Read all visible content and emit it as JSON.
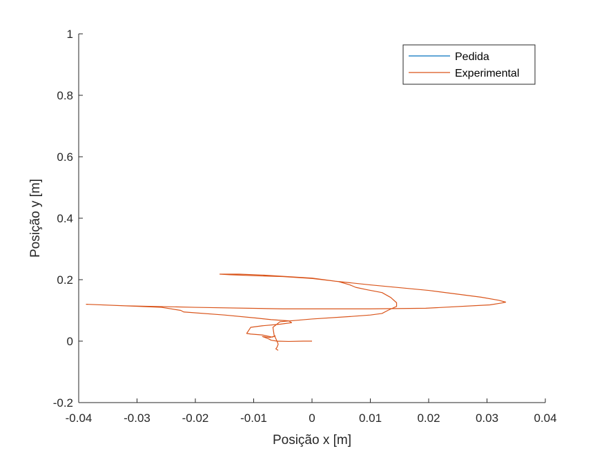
{
  "chart_data": {
    "type": "line",
    "xlabel": "Posição x [m]",
    "ylabel": "Posição y [m]",
    "xlim": [
      -0.04,
      0.04
    ],
    "ylim": [
      -0.2,
      1
    ],
    "x_ticks": [
      -0.04,
      -0.03,
      -0.02,
      -0.01,
      0,
      0.01,
      0.02,
      0.03,
      0.04
    ],
    "x_tick_labels": [
      "-0.04",
      "-0.03",
      "-0.02",
      "-0.01",
      "0",
      "0.01",
      "0.02",
      "0.03",
      "0.04"
    ],
    "y_ticks": [
      -0.2,
      0,
      0.2,
      0.4,
      0.6,
      0.8,
      1
    ],
    "y_tick_labels": [
      "-0.2",
      "0",
      "0.2",
      "0.4",
      "0.6",
      "0.8",
      "1"
    ],
    "grid": false,
    "legend": "top-right",
    "series": [
      {
        "name": "Pedida",
        "color": "#0072BD",
        "x": [],
        "y": []
      },
      {
        "name": "Experimental",
        "color": "#D95319",
        "x": [
          0.0,
          -0.0015,
          -0.004,
          -0.006,
          -0.007,
          -0.0075,
          -0.0085,
          -0.0072,
          -0.0063,
          -0.0068,
          -0.0085,
          -0.0105,
          -0.0112,
          -0.0105,
          -0.0085,
          -0.0055,
          -0.0035,
          -0.004,
          -0.007,
          -0.0095,
          -0.015,
          -0.022,
          -0.0225,
          -0.0258,
          -0.0387,
          -0.032,
          -0.02,
          -0.005,
          0.01,
          0.0195,
          0.0305,
          0.0325,
          0.0332,
          0.032,
          0.029,
          0.02,
          0.01,
          0.004,
          0.0,
          -0.0085,
          -0.0125,
          -0.0158,
          -0.014,
          -0.01,
          -0.005,
          0.0,
          0.0045,
          0.0065,
          0.0075,
          0.0095,
          0.012,
          0.0135,
          0.0145,
          0.0145,
          0.013,
          0.012,
          0.01,
          0.0065,
          0.0,
          -0.0055,
          -0.0067,
          -0.0065,
          -0.006,
          -0.0058,
          -0.006,
          -0.0062,
          -0.0058
        ],
        "y": [
          0.0,
          0.0,
          -0.001,
          0.0,
          0.003,
          0.008,
          0.015,
          0.012,
          0.017,
          0.013,
          0.02,
          0.023,
          0.025,
          0.045,
          0.05,
          0.055,
          0.06,
          0.066,
          0.07,
          0.075,
          0.085,
          0.095,
          0.1,
          0.11,
          0.12,
          0.115,
          0.11,
          0.105,
          0.105,
          0.107,
          0.118,
          0.124,
          0.127,
          0.133,
          0.143,
          0.165,
          0.183,
          0.195,
          0.205,
          0.215,
          0.218,
          0.218,
          0.216,
          0.213,
          0.21,
          0.204,
          0.194,
          0.183,
          0.175,
          0.167,
          0.158,
          0.142,
          0.125,
          0.113,
          0.1,
          0.09,
          0.085,
          0.08,
          0.072,
          0.063,
          0.045,
          0.02,
          0.0,
          -0.01,
          -0.02,
          -0.025,
          -0.03
        ]
      }
    ]
  }
}
